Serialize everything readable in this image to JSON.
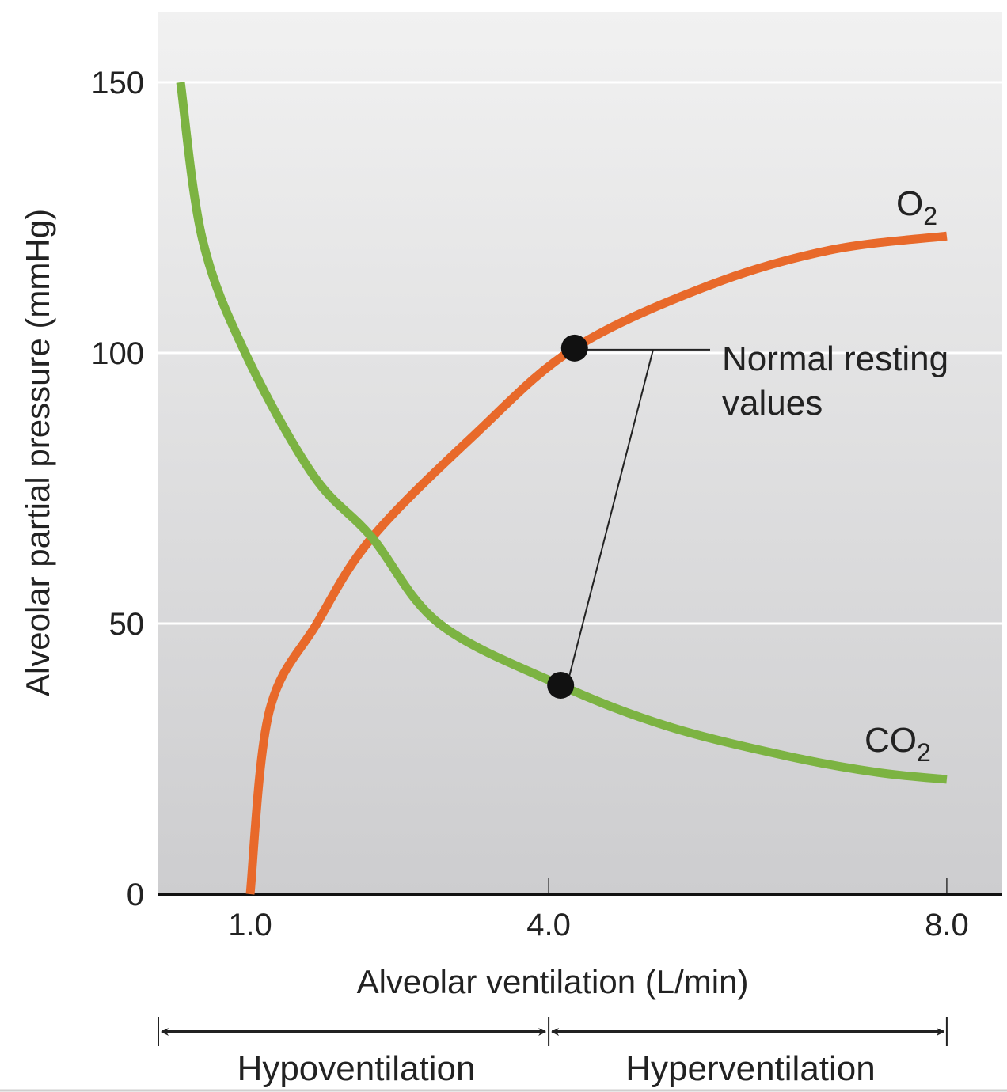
{
  "chart_data": {
    "type": "line",
    "title": "",
    "xlabel": "Alveolar ventilation (L/min)",
    "ylabel": "Alveolar partial pressure (mmHg)",
    "xlim": [
      0.1,
      8.5
    ],
    "ylim": [
      0,
      165
    ],
    "x_ticks": [
      1.0,
      4.0,
      8.0
    ],
    "x_tick_labels": [
      "1.0",
      "4.0",
      "8.0"
    ],
    "y_ticks": [
      0,
      50,
      100,
      150
    ],
    "y_tick_labels": [
      "0",
      "50",
      "100",
      "150"
    ],
    "grid": "horizontal",
    "series": [
      {
        "name": "O2",
        "label_main": "O",
        "label_sub": "2",
        "color": "#e8692a",
        "points": [
          [
            1.0,
            0
          ],
          [
            1.19,
            33.6
          ],
          [
            1.67,
            50
          ],
          [
            2.22,
            65.8
          ],
          [
            3.25,
            84.8
          ],
          [
            4.26,
            100.9
          ],
          [
            5.63,
            112.6
          ],
          [
            6.83,
            119
          ],
          [
            8.0,
            121.6
          ]
        ]
      },
      {
        "name": "CO2",
        "label_main": "CO",
        "label_sub": "2",
        "color": "#7cb342",
        "points": [
          [
            0.3,
            150
          ],
          [
            0.52,
            121
          ],
          [
            0.95,
            100
          ],
          [
            1.63,
            77.5
          ],
          [
            2.22,
            66
          ],
          [
            2.9,
            50
          ],
          [
            4.12,
            38.6
          ],
          [
            5.2,
            31
          ],
          [
            6.4,
            25.5
          ],
          [
            7.3,
            22.5
          ],
          [
            8.0,
            21.2
          ]
        ]
      }
    ],
    "annotations": {
      "normal_resting_label": [
        "Normal resting",
        "values"
      ],
      "normal_points": [
        [
          4.26,
          100.9
        ],
        [
          4.12,
          38.6
        ]
      ]
    },
    "ranges": [
      {
        "label": "Hypoventilation",
        "from": 0.1,
        "to": 4.0
      },
      {
        "label": "Hyperventilation",
        "from": 4.0,
        "to": 8.0
      }
    ]
  }
}
